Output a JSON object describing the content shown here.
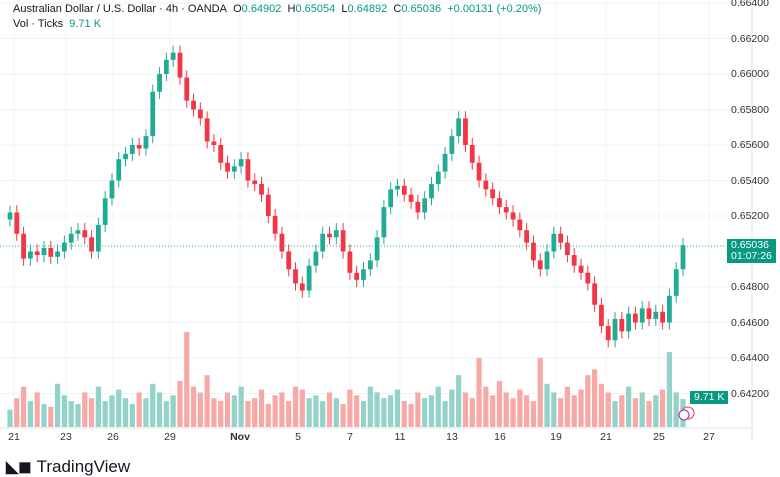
{
  "header": {
    "symbol": "Australian Dollar / U.S. Dollar · 4h · OANDA",
    "o_label": "O",
    "o": "0.64902",
    "h_label": "H",
    "h": "0.65054",
    "l_label": "L",
    "l": "0.64892",
    "c_label": "C",
    "c": "0.65036",
    "change": "+0.00131 (+0.20%)",
    "vol_label": "Vol · Ticks",
    "vol": "9.71 K"
  },
  "badges": {
    "price": "0.65036",
    "countdown": "01:07:26",
    "volume": "9.71 K"
  },
  "logo": "TradingView",
  "colors": {
    "up": "#22ab94",
    "down": "#f23645",
    "up_vol": "#93d2c8",
    "down_vol": "#f7a9a7"
  },
  "chart_data": {
    "type": "candlestick",
    "title": "Australian Dollar / U.S. Dollar · 4h · OANDA",
    "y_ticks": [
      "0.66400",
      "0.66200",
      "0.66000",
      "0.65800",
      "0.65600",
      "0.65400",
      "0.65200",
      "0.64800",
      "0.64600",
      "0.64400",
      "0.64200"
    ],
    "ylim": [
      0.642,
      0.664
    ],
    "x_ticks": [
      "21",
      "23",
      "26",
      "29",
      "Nov",
      "5",
      "7",
      "11",
      "13",
      "16",
      "19",
      "21",
      "25",
      "27"
    ],
    "first_open": 0.6518,
    "closes": [
      0.6522,
      0.651,
      0.6496,
      0.65,
      0.6498,
      0.6502,
      0.6497,
      0.65,
      0.6505,
      0.651,
      0.6512,
      0.6508,
      0.65,
      0.6515,
      0.653,
      0.654,
      0.6552,
      0.6555,
      0.656,
      0.6558,
      0.6565,
      0.659,
      0.66,
      0.6608,
      0.6612,
      0.6598,
      0.6585,
      0.658,
      0.6575,
      0.6562,
      0.656,
      0.655,
      0.6545,
      0.6548,
      0.6552,
      0.654,
      0.6538,
      0.6532,
      0.652,
      0.651,
      0.65,
      0.649,
      0.6482,
      0.6478,
      0.6492,
      0.65,
      0.651,
      0.6508,
      0.6512,
      0.65,
      0.6488,
      0.6484,
      0.649,
      0.6495,
      0.6508,
      0.6525,
      0.6535,
      0.6537,
      0.6532,
      0.6528,
      0.6522,
      0.653,
      0.6538,
      0.6545,
      0.6555,
      0.6565,
      0.6575,
      0.656,
      0.655,
      0.654,
      0.6535,
      0.653,
      0.6525,
      0.6522,
      0.6518,
      0.6512,
      0.6505,
      0.6495,
      0.649,
      0.65,
      0.651,
      0.6505,
      0.6498,
      0.6492,
      0.6488,
      0.6482,
      0.647,
      0.6458,
      0.645,
      0.6462,
      0.6455,
      0.6465,
      0.646,
      0.6468,
      0.6462,
      0.6466,
      0.646,
      0.6475,
      0.649,
      0.65036
    ],
    "volumes_k": [
      6,
      10,
      14,
      9,
      12,
      8,
      7,
      15,
      11,
      9,
      8,
      12,
      10,
      14,
      9,
      11,
      13,
      10,
      8,
      12,
      10,
      15,
      12,
      9,
      11,
      16,
      33,
      14,
      12,
      18,
      10,
      9,
      12,
      11,
      14,
      9,
      10,
      13,
      8,
      11,
      12,
      9,
      14,
      13,
      10,
      11,
      9,
      12,
      10,
      8,
      13,
      11,
      9,
      14,
      12,
      10,
      11,
      13,
      9,
      8,
      12,
      10,
      11,
      14,
      9,
      13,
      18,
      12,
      10,
      24,
      14,
      11,
      16,
      12,
      10,
      13,
      11,
      9,
      24,
      15,
      12,
      10,
      14,
      11,
      13,
      18,
      20,
      15,
      12,
      9,
      11,
      14,
      10,
      12,
      9,
      11,
      13,
      26,
      12,
      9.71
    ]
  }
}
